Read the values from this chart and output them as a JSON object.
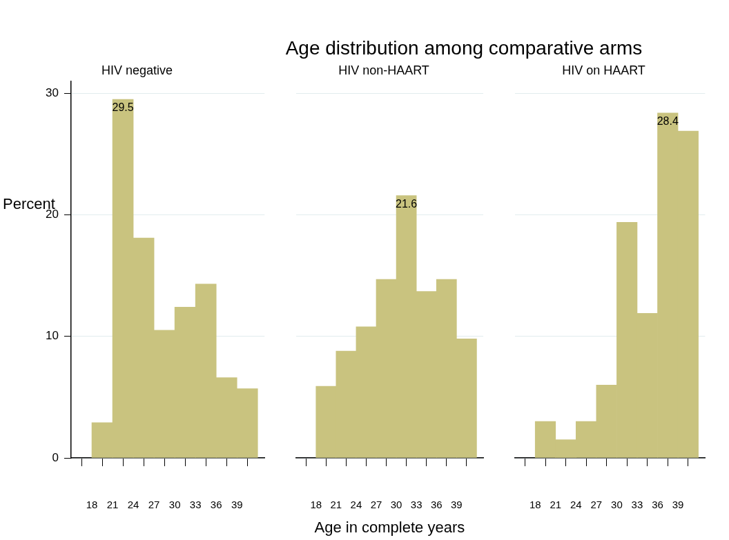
{
  "chart_data": [
    {
      "type": "histogram",
      "subtitle": "HIV negative",
      "ylabel": "Percent",
      "bins": [
        18,
        21,
        24,
        27,
        30,
        33,
        36,
        39,
        42
      ],
      "values": [
        2.9,
        29.5,
        18.1,
        10.5,
        12.4,
        14.3,
        6.6,
        5.7
      ],
      "value_labels": [
        null,
        "29.5",
        null,
        null,
        null,
        null,
        null,
        null
      ],
      "color": "#c9c37f",
      "xlim": [
        15,
        43
      ],
      "xticks": [
        18,
        21,
        24,
        27,
        30,
        33,
        36,
        39
      ],
      "ylim": [
        0,
        31
      ],
      "yticks": [
        0,
        10,
        20,
        30
      ],
      "grid": "y"
    },
    {
      "type": "histogram",
      "title": "Age distribution among comparative arms",
      "subtitle": "HIV non-HAART",
      "xlabel": "Age in complete years",
      "bins": [
        18,
        21,
        24,
        27,
        30,
        33,
        36,
        39,
        42
      ],
      "values": [
        5.9,
        8.8,
        10.8,
        14.7,
        21.6,
        13.7,
        14.7,
        9.8
      ],
      "value_labels": [
        null,
        null,
        null,
        null,
        "21.6",
        null,
        null,
        null
      ],
      "color": "#c9c37f",
      "xlim": [
        15,
        43
      ],
      "xticks": [
        18,
        21,
        24,
        27,
        30,
        33,
        36,
        39
      ],
      "ylim": [
        0,
        30
      ],
      "yticks": [
        0,
        10,
        20,
        30
      ],
      "grid": "y",
      "tick_labels": "x"
    },
    {
      "type": "histogram",
      "subtitle": "HIV on HAART",
      "bins": [
        18,
        21,
        24,
        27,
        30,
        33,
        36,
        39,
        42
      ],
      "values": [
        3.0,
        1.5,
        3.0,
        6.0,
        19.4,
        11.9,
        28.4,
        26.9
      ],
      "value_labels": [
        null,
        null,
        null,
        null,
        null,
        null,
        "28.4",
        null
      ],
      "color": "#c9c37f",
      "xlim": [
        15,
        43
      ],
      "xticks": [
        18,
        21,
        24,
        27,
        30,
        33,
        36,
        39
      ],
      "ylim": [
        0,
        30
      ],
      "yticks": [
        0,
        10,
        20,
        30
      ],
      "grid": "y",
      "tick_labels": "x"
    }
  ]
}
